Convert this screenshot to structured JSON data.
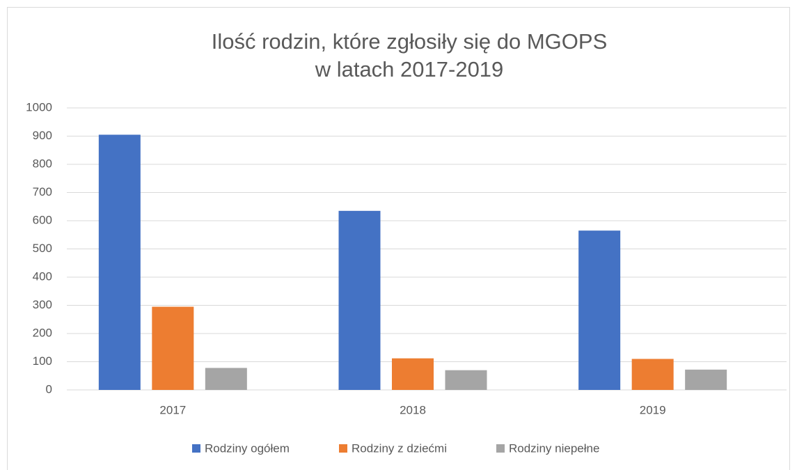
{
  "chart_data": {
    "type": "bar",
    "title": [
      "Ilość rodzin, które zgłosiły się do MGOPS",
      "w latach 2017-2019"
    ],
    "categories": [
      "2017",
      "2018",
      "2019"
    ],
    "series": [
      {
        "name": "Rodziny ogółem",
        "color": "#4472c4",
        "values": [
          905,
          635,
          565
        ]
      },
      {
        "name": "Rodziny z dziećmi",
        "color": "#ed7d31",
        "values": [
          295,
          112,
          110
        ]
      },
      {
        "name": "Rodziny niepełne",
        "color": "#a5a5a5",
        "values": [
          78,
          70,
          72
        ]
      }
    ],
    "ylim": [
      0,
      1000
    ],
    "yticks": [
      0,
      100,
      200,
      300,
      400,
      500,
      600,
      700,
      800,
      900,
      1000
    ],
    "grid": true,
    "legend": "bottom"
  }
}
